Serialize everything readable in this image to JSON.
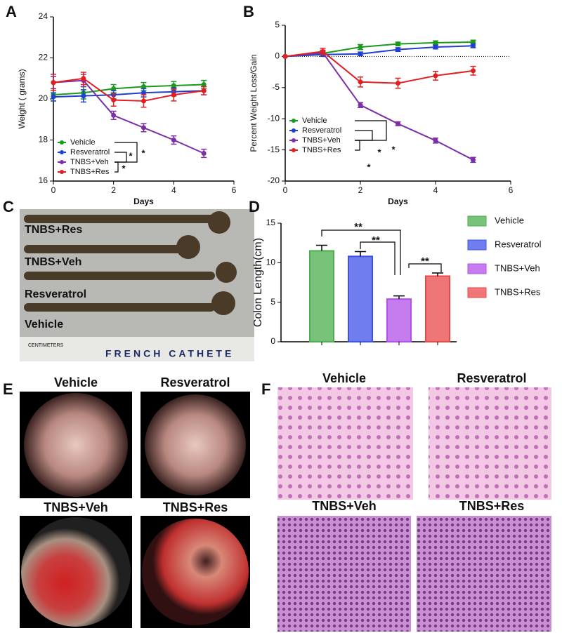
{
  "panel_labels": [
    "A",
    "B",
    "C",
    "D",
    "E",
    "F"
  ],
  "chart_data": [
    {
      "type": "line",
      "xlabel": "Days",
      "ylabel": "Weight ( grams)",
      "x": [
        0,
        1,
        2,
        3,
        4,
        5
      ],
      "xlim": [
        0,
        6
      ],
      "xticks": [
        0,
        2,
        4,
        6
      ],
      "ylim": [
        16,
        24
      ],
      "yticks": [
        16,
        18,
        20,
        22,
        24
      ],
      "legend": "lower left",
      "series": [
        {
          "name": "Vehicle",
          "color": "#1a9a1a",
          "values": [
            20.2,
            20.3,
            20.5,
            20.6,
            20.65,
            20.7
          ],
          "errors": [
            0.3,
            0.3,
            0.2,
            0.2,
            0.2,
            0.2
          ]
        },
        {
          "name": "Resveratrol",
          "color": "#1f3fd0",
          "values": [
            20.1,
            20.15,
            20.2,
            20.3,
            20.35,
            20.4
          ],
          "errors": [
            0.2,
            0.3,
            0.2,
            0.2,
            0.2,
            0.2
          ]
        },
        {
          "name": "TNBS+Veh",
          "color": "#7b2fa8",
          "values": [
            20.8,
            20.9,
            19.2,
            18.6,
            18.0,
            17.35
          ],
          "errors": [
            0.3,
            0.3,
            0.2,
            0.2,
            0.2,
            0.2
          ]
        },
        {
          "name": "TNBS+Res",
          "color": "#e02020",
          "values": [
            20.8,
            21.0,
            19.95,
            19.9,
            20.2,
            20.4
          ],
          "errors": [
            0.4,
            0.3,
            0.3,
            0.3,
            0.3,
            0.2
          ]
        }
      ],
      "annotations": [
        "*",
        "*",
        "*"
      ]
    },
    {
      "type": "line",
      "xlabel": "Days",
      "ylabel": "Percent Weight Loss/Gain",
      "x": [
        0,
        1,
        2,
        3,
        4,
        5
      ],
      "xlim": [
        0,
        6
      ],
      "xticks": [
        0,
        2,
        4,
        6
      ],
      "ylim": [
        -20,
        5
      ],
      "yticks": [
        -20,
        -15,
        -10,
        -5,
        0,
        5
      ],
      "legend": "lower left",
      "reference_line": 0,
      "series": [
        {
          "name": "Vehicle",
          "color": "#1a9a1a",
          "values": [
            0,
            0.5,
            1.5,
            2.0,
            2.2,
            2.3
          ],
          "errors": [
            0,
            0.3,
            0.4,
            0.3,
            0.3,
            0.3
          ]
        },
        {
          "name": "Resveratrol",
          "color": "#1f3fd0",
          "values": [
            0,
            0.3,
            0.4,
            1.1,
            1.5,
            1.7
          ],
          "errors": [
            0,
            0.3,
            0.3,
            0.3,
            0.3,
            0.3
          ]
        },
        {
          "name": "TNBS+Veh",
          "color": "#7b2fa8",
          "values": [
            0,
            0.6,
            -7.8,
            -10.8,
            -13.5,
            -16.6
          ],
          "errors": [
            0,
            0.4,
            0.4,
            0.3,
            0.4,
            0.4
          ]
        },
        {
          "name": "TNBS+Res",
          "color": "#e02020",
          "values": [
            0,
            0.8,
            -4.1,
            -4.3,
            -3.1,
            -2.3
          ],
          "errors": [
            0,
            0.5,
            0.8,
            0.8,
            0.7,
            0.7
          ]
        }
      ],
      "annotations": [
        "*",
        "*",
        "*"
      ]
    },
    {
      "type": "bar",
      "ylabel": "Colon Length(cm)",
      "ylim": [
        0,
        15
      ],
      "yticks": [
        0,
        5,
        10,
        15
      ],
      "legend": "outside right",
      "series": [
        {
          "name": "Vehicle",
          "color": "#4cae4c",
          "values": [
            11.5
          ],
          "errors": [
            0.7
          ]
        },
        {
          "name": "Resveratrol",
          "color": "#3f52e8",
          "values": [
            10.8
          ],
          "errors": [
            0.6
          ]
        },
        {
          "name": "TNBS+Veh",
          "color": "#b050e8",
          "values": [
            5.4
          ],
          "errors": [
            0.4
          ]
        },
        {
          "name": "TNBS+Res",
          "color": "#e84848",
          "values": [
            8.3
          ],
          "errors": [
            0.4
          ]
        }
      ],
      "annotations": [
        "**",
        "**",
        "**"
      ]
    }
  ],
  "photo_c": {
    "labels": [
      "TNBS+Res",
      "TNBS+Veh",
      "Resveratrol",
      "Vehicle"
    ],
    "ruler": [
      "CENTIMETERS",
      "FRENCH CATHETE"
    ]
  },
  "photo_e": {
    "labels": [
      "Vehicle",
      "Resveratrol",
      "TNBS+Veh",
      "TNBS+Res"
    ]
  },
  "photo_f": {
    "labels": [
      "Vehicle",
      "Resveratrol",
      "TNBS+Veh",
      "TNBS+Res"
    ]
  }
}
